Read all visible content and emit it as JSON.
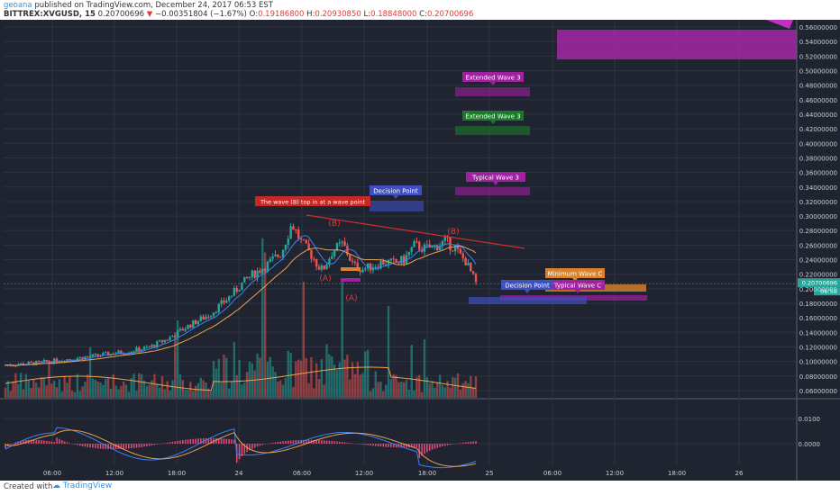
{
  "header": {
    "author": "geoana",
    "published": "published on TradingView.com, December 24, 2017 06:53 EST",
    "symbol": "BITTREX:XVGUSD, 15",
    "price": "0.20700696",
    "change_arrow": "▼",
    "change": "−0.00351804 (−1.67%)",
    "o_label": "O:",
    "o": "0.19186800",
    "h_label": "H:",
    "h": "0.20930850",
    "l_label": "L:",
    "l": "0.18848000",
    "c_label": "C:",
    "c": "0.20700696"
  },
  "footer": {
    "created_with": "Created with",
    "brand": "TradingView"
  },
  "colors": {
    "background": "#1f2430",
    "up": "#26a69a",
    "down": "#ef5350",
    "accent": "#2196f3"
  },
  "chart_data": {
    "type": "candlestick",
    "y_ticks": [
      "0.56000000",
      "0.54000000",
      "0.52000000",
      "0.50000000",
      "0.48000000",
      "0.46000000",
      "0.44000000",
      "0.42000000",
      "0.40000000",
      "0.38000000",
      "0.36000000",
      "0.34000000",
      "0.32000000",
      "0.30000000",
      "0.28000000",
      "0.26000000",
      "0.24000000",
      "0.22000000",
      "0.20000000",
      "0.18000000",
      "0.16000000",
      "0.14000000",
      "0.12000000",
      "0.10000000",
      "0.08000000",
      "0.06000000"
    ],
    "y_range": [
      0.05,
      0.57
    ],
    "x_ticks": [
      "06:00",
      "12:00",
      "18:00",
      "24",
      "06:00",
      "12:00",
      "18:00",
      "25",
      "06:00",
      "12:00",
      "18:00",
      "26"
    ],
    "price_path": [
      [
        0,
        0.095
      ],
      [
        3,
        0.098
      ],
      [
        6,
        0.103
      ],
      [
        9,
        0.108
      ],
      [
        12,
        0.114
      ],
      [
        14,
        0.119
      ],
      [
        16,
        0.132
      ],
      [
        18,
        0.15
      ],
      [
        20,
        0.165
      ],
      [
        22,
        0.19
      ],
      [
        23,
        0.205
      ],
      [
        24,
        0.218
      ],
      [
        25.5,
        0.232
      ],
      [
        27,
        0.25
      ],
      [
        28,
        0.29
      ],
      [
        29,
        0.262
      ],
      [
        30,
        0.245
      ],
      [
        30.5,
        0.233
      ],
      [
        31,
        0.225
      ],
      [
        32,
        0.252
      ],
      [
        33,
        0.262
      ],
      [
        34,
        0.232
      ],
      [
        35,
        0.227
      ],
      [
        36,
        0.232
      ],
      [
        37,
        0.237
      ],
      [
        38,
        0.235
      ],
      [
        39,
        0.24
      ],
      [
        40,
        0.26
      ],
      [
        41,
        0.255
      ],
      [
        42,
        0.258
      ],
      [
        43,
        0.265
      ],
      [
        44,
        0.255
      ],
      [
        44.5,
        0.245
      ],
      [
        45,
        0.238
      ],
      [
        46,
        0.207
      ]
    ],
    "price_label": "0.20700696",
    "price_label_2": "06:58",
    "annotations": [
      {
        "text": "The wave (B) top in at a wave point",
        "color": "#d32f2f"
      },
      {
        "text": "Decision Point",
        "color": "#3f4fbf"
      },
      {
        "text": "Extended Wave 3",
        "color": "#a020a0"
      },
      {
        "text": "Extended Wave 3",
        "color": "#1b7a2a"
      },
      {
        "text": "Typical Wave 3",
        "color": "#a020a0"
      },
      {
        "text": "Minimum Wave C",
        "color": "#d9822b"
      },
      {
        "text": "Decision Point",
        "color": "#3f4fbf"
      },
      {
        "text": "Typical Wave C",
        "color": "#a020a0"
      }
    ],
    "wave_labels": [
      "(B)",
      "(A)",
      "(A)",
      "(B)"
    ],
    "indicator_ticks": [
      "0.0100",
      "0.0000"
    ],
    "volume": "random",
    "grid": true
  }
}
